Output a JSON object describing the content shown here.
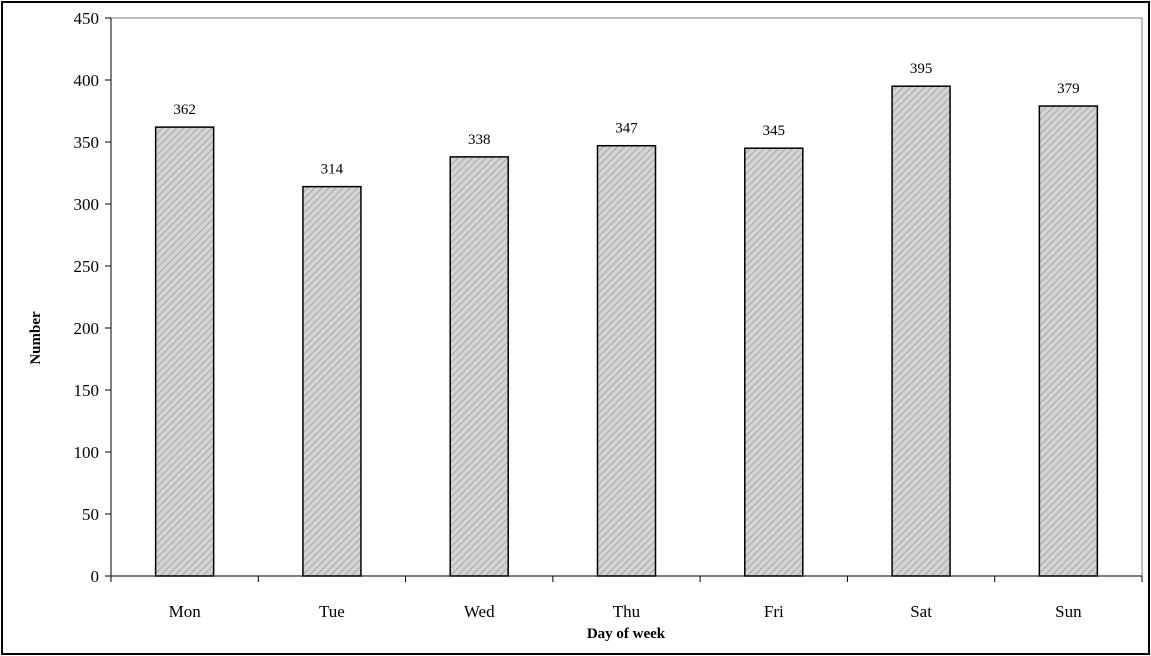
{
  "chart_data": {
    "type": "bar",
    "title": "",
    "xlabel": "Day of week",
    "ylabel": "Number",
    "categories": [
      "Mon",
      "Tue",
      "Wed",
      "Thu",
      "Fri",
      "Sat",
      "Sun"
    ],
    "values": [
      362,
      314,
      338,
      347,
      345,
      395,
      379
    ],
    "data_labels": [
      "362",
      "314",
      "338",
      "347",
      "345",
      "395",
      "379"
    ],
    "ylim": [
      0,
      450
    ],
    "yticks": [
      0,
      50,
      100,
      150,
      200,
      250,
      300,
      350,
      400,
      450
    ],
    "ytick_labels": [
      "0",
      "50",
      "100",
      "150",
      "200",
      "250",
      "300",
      "350",
      "400",
      "450"
    ],
    "grid": false,
    "legend": "none",
    "bar_fill": "#d4d4d4",
    "bar_hatch_color": "#a8a8a8",
    "bar_edge_color": "#000000"
  }
}
